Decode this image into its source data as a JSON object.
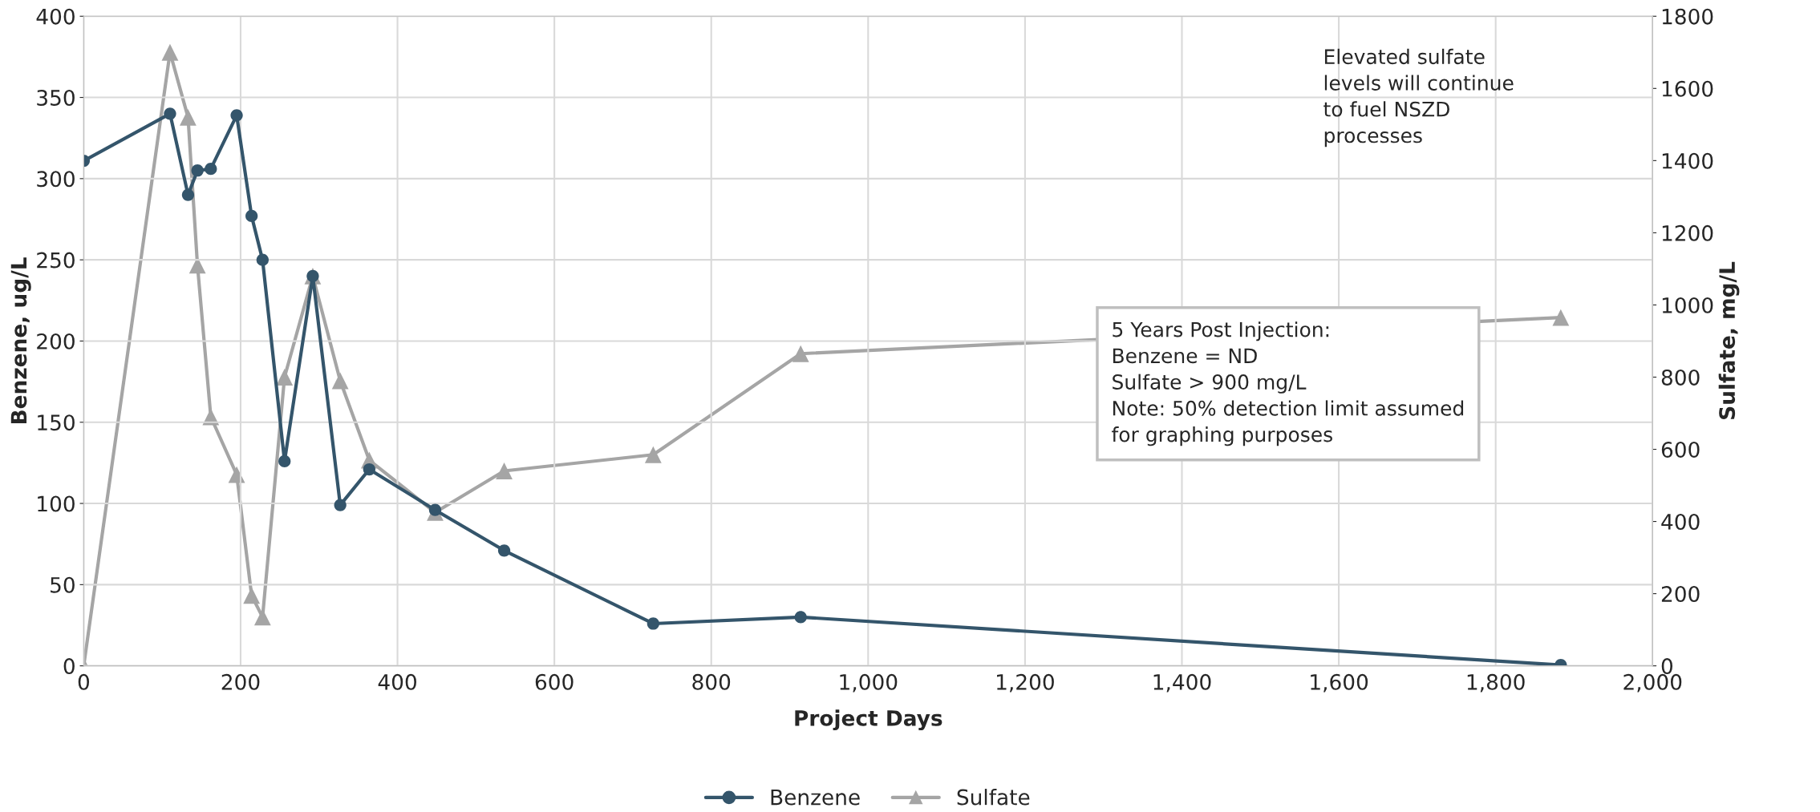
{
  "chart_data": {
    "type": "line",
    "xlabel": "Project Days",
    "ylabel": "Benzene, ug/L",
    "y2label": "Sulfate, mg/L",
    "x": [
      0,
      110,
      133,
      145,
      162,
      195,
      214,
      228,
      256,
      292,
      327,
      364,
      448,
      536,
      726,
      914,
      1883
    ],
    "series": [
      {
        "name": "Benzene",
        "color": "#34556b",
        "marker": "circle",
        "values": [
          311,
          340,
          290,
          305,
          306,
          339,
          277,
          250,
          126,
          240,
          99,
          121,
          96,
          71,
          26,
          30,
          0.5
        ]
      },
      {
        "name": "Sulfate",
        "color": "#a5a5a5",
        "marker": "triangle",
        "axis": "y2",
        "values": [
          0,
          1700,
          1520,
          1110,
          690,
          530,
          195,
          135,
          800,
          1080,
          790,
          570,
          425,
          540,
          585,
          865,
          965
        ]
      }
    ],
    "xlim": [
      0,
      2000
    ],
    "xticks": [
      0,
      200,
      400,
      600,
      800,
      {
        "value": 1000,
        "label": "1,000"
      },
      {
        "value": 1200,
        "label": "1,200"
      },
      {
        "value": 1400,
        "label": "1,400"
      },
      {
        "value": 1600,
        "label": "1,600"
      },
      {
        "value": 1800,
        "label": "1,800"
      },
      {
        "value": 2000,
        "label": "2,000"
      }
    ],
    "ylim": [
      0,
      400
    ],
    "yticks": [
      0,
      50,
      100,
      150,
      200,
      250,
      300,
      350,
      400
    ],
    "y2lim": [
      0,
      1800
    ],
    "y2ticks": [
      0,
      200,
      400,
      600,
      800,
      1000,
      1200,
      1400,
      1600,
      1800
    ],
    "grid": true,
    "legend": "bottom",
    "line_style": "solid",
    "annotations": [
      "Elevated sulfate\nlevels will continue\nto fuel NSZD\nprocesses",
      "5 Years Post Injection:\nBenzene = ND\nSulfate > 900 mg/L\nNote: 50% detection limit assumed\nfor graphing purposes"
    ]
  }
}
